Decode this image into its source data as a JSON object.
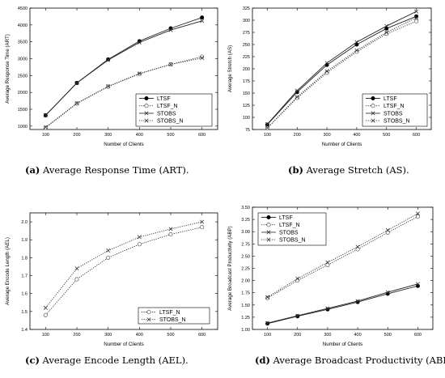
{
  "chart_data": [
    {
      "type": "line",
      "caption_letter": "(a)",
      "caption_text": "Average Response Time (ART).",
      "xlabel": "Number of Clients",
      "ylabel": "Average Response Time (ART)",
      "x": [
        100,
        200,
        300,
        400,
        500,
        600
      ],
      "xlim": [
        50,
        650
      ],
      "ylim": [
        900,
        4500
      ],
      "xticks": [
        "100",
        "200",
        "300",
        "400",
        "500",
        "600"
      ],
      "yticks": [
        "1000",
        "1500",
        "2000",
        "2500",
        "3000",
        "3500",
        "4000",
        "4500"
      ],
      "legend_position": "bottom-right",
      "series": [
        {
          "name": "LTSF",
          "values": [
            1320,
            2280,
            2980,
            3520,
            3900,
            4220
          ],
          "marker": "filled-circle",
          "line": "solid"
        },
        {
          "name": "LTSF_N",
          "values": [
            950,
            1670,
            2170,
            2550,
            2830,
            3060
          ],
          "marker": "open-circle",
          "line": "dotted"
        },
        {
          "name": "STOBS",
          "values": [
            1320,
            2280,
            2960,
            3480,
            3850,
            4120
          ],
          "marker": "x",
          "line": "solid"
        },
        {
          "name": "STOBS_N",
          "values": [
            970,
            1680,
            2180,
            2560,
            2830,
            3020
          ],
          "marker": "x",
          "line": "dotted"
        }
      ]
    },
    {
      "type": "line",
      "caption_letter": "(b)",
      "caption_text": "Average Stretch (AS).",
      "xlabel": "Number of Clients",
      "ylabel": "Average Stretch (AS)",
      "x": [
        100,
        200,
        300,
        400,
        500,
        600
      ],
      "xlim": [
        50,
        650
      ],
      "ylim": [
        75,
        325
      ],
      "xticks": [
        "100",
        "200",
        "300",
        "400",
        "500",
        "600"
      ],
      "yticks": [
        "75",
        "100",
        "125",
        "150",
        "175",
        "200",
        "225",
        "250",
        "275",
        "300",
        "325"
      ],
      "legend_position": "bottom-right",
      "series": [
        {
          "name": "LTSF",
          "values": [
            85,
            152,
            208,
            250,
            283,
            308
          ],
          "marker": "filled-circle",
          "line": "solid"
        },
        {
          "name": "LTSF_N",
          "values": [
            78,
            140,
            192,
            235,
            272,
            298
          ],
          "marker": "open-circle",
          "line": "dotted"
        },
        {
          "name": "STOBS",
          "values": [
            86,
            155,
            212,
            255,
            288,
            318
          ],
          "marker": "x",
          "line": "solid"
        },
        {
          "name": "STOBS_N",
          "values": [
            78,
            142,
            195,
            238,
            275,
            305
          ],
          "marker": "x",
          "line": "dotted"
        }
      ]
    },
    {
      "type": "line",
      "caption_letter": "(c)",
      "caption_text": "Average Encode Length (AEL).",
      "xlabel": "Number of Clients",
      "ylabel": "Average Encode Length (AEL)",
      "x": [
        100,
        200,
        300,
        400,
        500,
        600
      ],
      "xlim": [
        50,
        650
      ],
      "ylim": [
        1.4,
        2.05
      ],
      "xticks": [
        "100",
        "200",
        "300",
        "400",
        "500",
        "600"
      ],
      "yticks": [
        "1.4",
        "1.5",
        "1.6",
        "1.7",
        "1.8",
        "1.9",
        "2.0"
      ],
      "legend_position": "bottom-right",
      "series": [
        {
          "name": "LTSF_N",
          "values": [
            1.48,
            1.68,
            1.8,
            1.875,
            1.93,
            1.97
          ],
          "marker": "open-circle",
          "line": "dotted"
        },
        {
          "name": "STOBS_N",
          "values": [
            1.52,
            1.74,
            1.84,
            1.915,
            1.96,
            2.0
          ],
          "marker": "x",
          "line": "dotted"
        }
      ]
    },
    {
      "type": "line",
      "caption_letter": "(d)",
      "caption_text": "Average Broadcast Productivity (ABP).",
      "xlabel": "Number of Clients",
      "ylabel": "Average Broadcast Productivity (ABP)",
      "x": [
        100,
        200,
        300,
        400,
        500,
        600
      ],
      "xlim": [
        50,
        650
      ],
      "ylim": [
        1.0,
        3.5
      ],
      "xticks": [
        "100",
        "200",
        "300",
        "400",
        "500",
        "600"
      ],
      "yticks": [
        "1.00",
        "1.25",
        "1.50",
        "1.75",
        "2.00",
        "2.25",
        "2.50",
        "2.75",
        "3.00",
        "3.25",
        "3.50"
      ],
      "legend_position": "top-left",
      "series": [
        {
          "name": "LTSF",
          "values": [
            1.12,
            1.27,
            1.41,
            1.56,
            1.73,
            1.89
          ],
          "marker": "filled-circle",
          "line": "solid"
        },
        {
          "name": "LTSF_N",
          "values": [
            1.64,
            2.0,
            2.32,
            2.64,
            2.98,
            3.31
          ],
          "marker": "open-circle",
          "line": "dotted"
        },
        {
          "name": "STOBS",
          "values": [
            1.13,
            1.28,
            1.43,
            1.58,
            1.76,
            1.93
          ],
          "marker": "x",
          "line": "solid"
        },
        {
          "name": "STOBS_N",
          "values": [
            1.66,
            2.04,
            2.37,
            2.69,
            3.03,
            3.37
          ],
          "marker": "x",
          "line": "dotted"
        }
      ]
    }
  ]
}
